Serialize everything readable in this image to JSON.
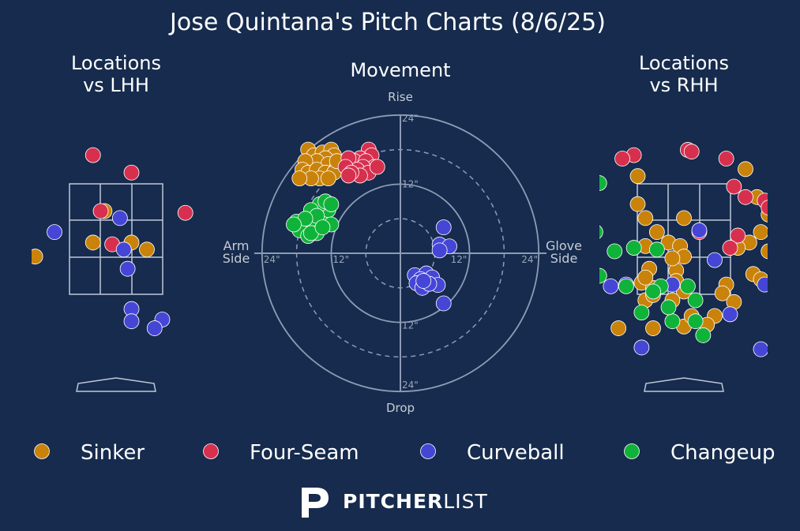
{
  "title": "Jose Quintana's Pitch Charts (8/6/25)",
  "colors": {
    "background": "#162b4d",
    "Sinker": "#c9830a",
    "Four-Seam": "#d7304f",
    "Curveball": "#4646d6",
    "Changeup": "#10b33a",
    "zone_lines": "#c0c8d8",
    "axis_lines": "#8d9bb5"
  },
  "logo": {
    "word_bold": "PITCHER",
    "word_light": "LIST"
  },
  "chart_data": [
    {
      "type": "scatter",
      "panel": "locations-lhh",
      "title": "Locations\nvs LHH",
      "x_units": "zone widths",
      "xlim": [
        -1.35,
        1.6
      ],
      "ylim": [
        -4.3,
        4.0
      ],
      "series": [
        {
          "name": "Sinker",
          "points": [
            [
              0.15,
              0.8
            ],
            [
              0.0,
              -0.1
            ],
            [
              0.5,
              -0.1
            ],
            [
              0.7,
              -0.3
            ],
            [
              1.5,
              -0.2
            ],
            [
              -0.75,
              -0.5
            ]
          ]
        },
        {
          "name": "Four-Seam",
          "points": [
            [
              0.0,
              2.4
            ],
            [
              0.5,
              1.9
            ],
            [
              0.1,
              0.8
            ],
            [
              1.2,
              0.75
            ],
            [
              0.25,
              -0.15
            ],
            [
              1.6,
              -0.45
            ]
          ]
        },
        {
          "name": "Curveball",
          "points": [
            [
              -0.5,
              0.2
            ],
            [
              0.35,
              0.6
            ],
            [
              0.4,
              -0.3
            ],
            [
              0.45,
              -0.85
            ],
            [
              0.5,
              -2.0
            ],
            [
              0.5,
              -2.35
            ],
            [
              0.9,
              -2.3
            ],
            [
              0.8,
              -2.55
            ]
          ]
        },
        {
          "name": "Changeup",
          "points": []
        }
      ]
    },
    {
      "type": "scatter",
      "panel": "movement",
      "title": "Movement",
      "top_label": "Rise",
      "bottom_label": "Drop",
      "left_label": "Arm\nSide",
      "right_label": "Glove\nSide",
      "ring_labels": [
        "12\"",
        "24\""
      ],
      "units": "inches",
      "range": [
        -24,
        24
      ],
      "series": [
        {
          "name": "Sinker",
          "points": [
            [
              -16.0,
              18.0
            ],
            [
              -15.0,
              17.0
            ],
            [
              -13.5,
              17.5
            ],
            [
              -12.0,
              18.0
            ],
            [
              -11.5,
              17.0
            ],
            [
              -13.0,
              16.5
            ],
            [
              -14.5,
              16.0
            ],
            [
              -12.5,
              15.5
            ],
            [
              -11.0,
              15.0
            ],
            [
              -16.5,
              16.0
            ],
            [
              -17.0,
              14.5
            ],
            [
              -16.0,
              14.0
            ],
            [
              -14.5,
              14.5
            ],
            [
              -13.0,
              14.0
            ],
            [
              -11.5,
              14.0
            ],
            [
              -14.0,
              13.0
            ],
            [
              -12.5,
              13.0
            ],
            [
              -15.5,
              13.0
            ],
            [
              -11.0,
              16.0
            ],
            [
              -17.5,
              13.0
            ]
          ]
        },
        {
          "name": "Four-Seam",
          "points": [
            [
              -5.5,
              18.0
            ],
            [
              -5.0,
              17.0
            ],
            [
              -7.0,
              16.5
            ],
            [
              -8.0,
              16.0
            ],
            [
              -9.0,
              16.5
            ],
            [
              -6.0,
              16.0
            ],
            [
              -4.5,
              15.0
            ],
            [
              -6.5,
              15.0
            ],
            [
              -7.5,
              14.5
            ],
            [
              -9.5,
              15.0
            ],
            [
              -5.5,
              14.0
            ],
            [
              -7.0,
              13.5
            ],
            [
              -8.5,
              14.0
            ],
            [
              -4.0,
              15.0
            ],
            [
              -9.0,
              13.5
            ]
          ]
        },
        {
          "name": "Changeup",
          "points": [
            [
              -18.0,
              5.5
            ],
            [
              -16.5,
              4.5
            ],
            [
              -15.0,
              5.0
            ],
            [
              -13.5,
              6.0
            ],
            [
              -12.5,
              7.5
            ],
            [
              -14.0,
              8.5
            ],
            [
              -15.5,
              7.5
            ],
            [
              -17.5,
              4.0
            ],
            [
              -14.5,
              3.5
            ],
            [
              -16.0,
              3.0
            ],
            [
              -12.0,
              5.0
            ],
            [
              -13.0,
              9.0
            ],
            [
              -14.5,
              6.5
            ],
            [
              -16.5,
              6.0
            ],
            [
              -18.5,
              5.0
            ],
            [
              -15.5,
              3.5
            ],
            [
              -13.5,
              4.5
            ],
            [
              -12.0,
              8.5
            ]
          ]
        },
        {
          "name": "Curveball",
          "points": [
            [
              7.5,
              4.5
            ],
            [
              6.8,
              1.5
            ],
            [
              8.5,
              1.2
            ],
            [
              6.8,
              0.5
            ],
            [
              2.5,
              -3.8
            ],
            [
              4.5,
              -3.5
            ],
            [
              3.5,
              -4.5
            ],
            [
              2.8,
              -5.2
            ],
            [
              5.5,
              -4.2
            ],
            [
              6.5,
              -5.5
            ],
            [
              3.8,
              -6.0
            ],
            [
              5.0,
              -5.3
            ],
            [
              7.5,
              -8.7
            ],
            [
              4.0,
              -4.8
            ]
          ]
        }
      ]
    },
    {
      "type": "scatter",
      "panel": "locations-rhh",
      "title": "Locations\nvs RHH",
      "x_units": "zone widths",
      "xlim": [
        -1.35,
        1.6
      ],
      "ylim": [
        -4.3,
        4.0
      ],
      "series": [
        {
          "name": "Sinker",
          "points": [
            [
              -0.3,
              1.8
            ],
            [
              -0.3,
              1.0
            ],
            [
              1.1,
              2.0
            ],
            [
              1.25,
              1.2
            ],
            [
              1.4,
              0.7
            ],
            [
              1.6,
              0.6
            ],
            [
              1.3,
              0.2
            ],
            [
              1.15,
              -0.1
            ],
            [
              -0.2,
              -0.2
            ],
            [
              0.1,
              -0.1
            ],
            [
              0.3,
              0.6
            ],
            [
              -0.2,
              0.6
            ],
            [
              -0.05,
              0.2
            ],
            [
              0.25,
              -0.2
            ],
            [
              1.0,
              -0.25
            ],
            [
              1.4,
              -0.35
            ],
            [
              1.5,
              -0.7
            ],
            [
              -0.15,
              -0.85
            ],
            [
              0.2,
              -0.9
            ],
            [
              -0.25,
              -1.25
            ],
            [
              0.85,
              -1.3
            ],
            [
              1.2,
              -1.0
            ],
            [
              0.8,
              -1.55
            ],
            [
              0.95,
              -1.8
            ],
            [
              0.3,
              -1.5
            ],
            [
              0.15,
              -1.75
            ],
            [
              -0.1,
              -1.4
            ],
            [
              1.3,
              -1.15
            ],
            [
              -0.2,
              -1.75
            ],
            [
              -0.1,
              -2.55
            ],
            [
              0.7,
              -2.2
            ],
            [
              0.6,
              -2.45
            ],
            [
              0.3,
              -2.5
            ],
            [
              0.4,
              -2.2
            ],
            [
              -0.55,
              -2.55
            ],
            [
              -0.1,
              -1.6
            ],
            [
              0.3,
              -0.5
            ],
            [
              0.15,
              -0.55
            ],
            [
              1.65,
              -0.3
            ],
            [
              0.2,
              -1.2
            ],
            [
              -0.2,
              -1.1
            ]
          ]
        },
        {
          "name": "Four-Seam",
          "points": [
            [
              0.35,
              2.55
            ],
            [
              0.4,
              2.5
            ],
            [
              -0.35,
              2.4
            ],
            [
              0.85,
              2.3
            ],
            [
              0.95,
              1.5
            ],
            [
              1.1,
              1.2
            ],
            [
              1.35,
              1.1
            ],
            [
              1.4,
              0.9
            ],
            [
              1.5,
              0.5
            ],
            [
              0.5,
              0.2
            ],
            [
              1.0,
              0.1
            ],
            [
              0.9,
              -0.25
            ],
            [
              -0.5,
              2.3
            ]
          ]
        },
        {
          "name": "Curveball",
          "points": [
            [
              0.5,
              0.25
            ],
            [
              0.7,
              -0.6
            ],
            [
              1.35,
              -1.3
            ],
            [
              0.9,
              -2.15
            ],
            [
              -0.25,
              -3.1
            ],
            [
              1.3,
              -3.15
            ],
            [
              1.5,
              -4.15
            ],
            [
              -0.65,
              -1.35
            ],
            [
              -0.45,
              -1.3
            ],
            [
              0.15,
              -1.3
            ]
          ]
        },
        {
          "name": "Changeup",
          "points": [
            [
              -0.8,
              1.6
            ],
            [
              -0.85,
              0.2
            ],
            [
              -1.05,
              -0.3
            ],
            [
              -0.6,
              -0.35
            ],
            [
              -0.35,
              -0.25
            ],
            [
              -0.05,
              -0.3
            ],
            [
              -0.8,
              -1.05
            ],
            [
              0.0,
              -1.35
            ],
            [
              -0.1,
              -1.5
            ],
            [
              -0.45,
              -1.35
            ],
            [
              0.35,
              -1.35
            ],
            [
              0.45,
              -1.75
            ],
            [
              0.15,
              -2.35
            ],
            [
              0.45,
              -2.35
            ],
            [
              0.55,
              -2.75
            ],
            [
              -0.25,
              -2.1
            ],
            [
              0.1,
              -1.95
            ]
          ]
        }
      ]
    }
  ],
  "legend": [
    {
      "label": "Sinker"
    },
    {
      "label": "Four-Seam"
    },
    {
      "label": "Curveball"
    },
    {
      "label": "Changeup"
    }
  ]
}
